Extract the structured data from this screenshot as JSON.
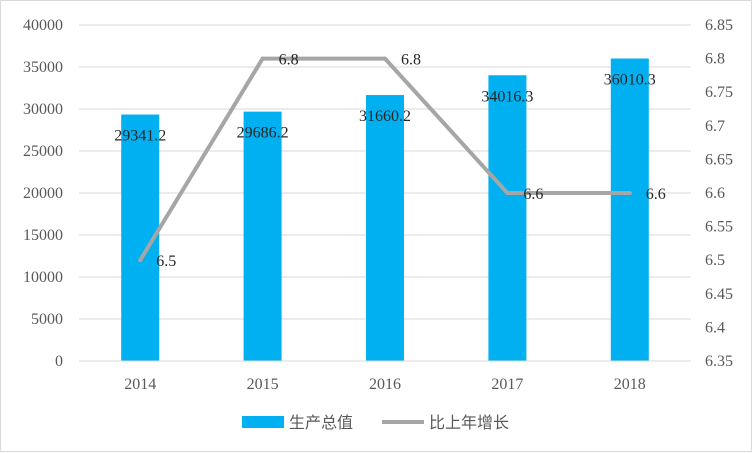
{
  "chart_data": {
    "type": "bar",
    "categories": [
      "2014",
      "2015",
      "2016",
      "2017",
      "2018"
    ],
    "series": [
      {
        "name": "生产总值",
        "type": "bar",
        "axis": "left",
        "color": "#00b0f0",
        "values": [
          29341.2,
          29686.2,
          31660.2,
          34016.3,
          36010.3
        ],
        "labels": [
          "29341.2",
          "29686.2",
          "31660.2",
          "34016.3",
          "36010.3"
        ]
      },
      {
        "name": "比上年增长",
        "type": "line",
        "axis": "right",
        "color": "#a6a6a6",
        "values": [
          6.5,
          6.8,
          6.8,
          6.6,
          6.6
        ],
        "labels": [
          "6.5",
          "6.8",
          "6.8",
          "6.6",
          "6.6"
        ]
      }
    ],
    "ylim": [
      0,
      40000
    ],
    "yticks": [
      "0",
      "5000",
      "10000",
      "15000",
      "20000",
      "25000",
      "30000",
      "35000",
      "40000"
    ],
    "y2lim": [
      6.35,
      6.85
    ],
    "y2ticks": [
      "6.35",
      "6.4",
      "6.45",
      "6.5",
      "6.55",
      "6.6",
      "6.65",
      "6.7",
      "6.75",
      "6.8",
      "6.85"
    ],
    "grid": true,
    "legend": "bottom"
  }
}
